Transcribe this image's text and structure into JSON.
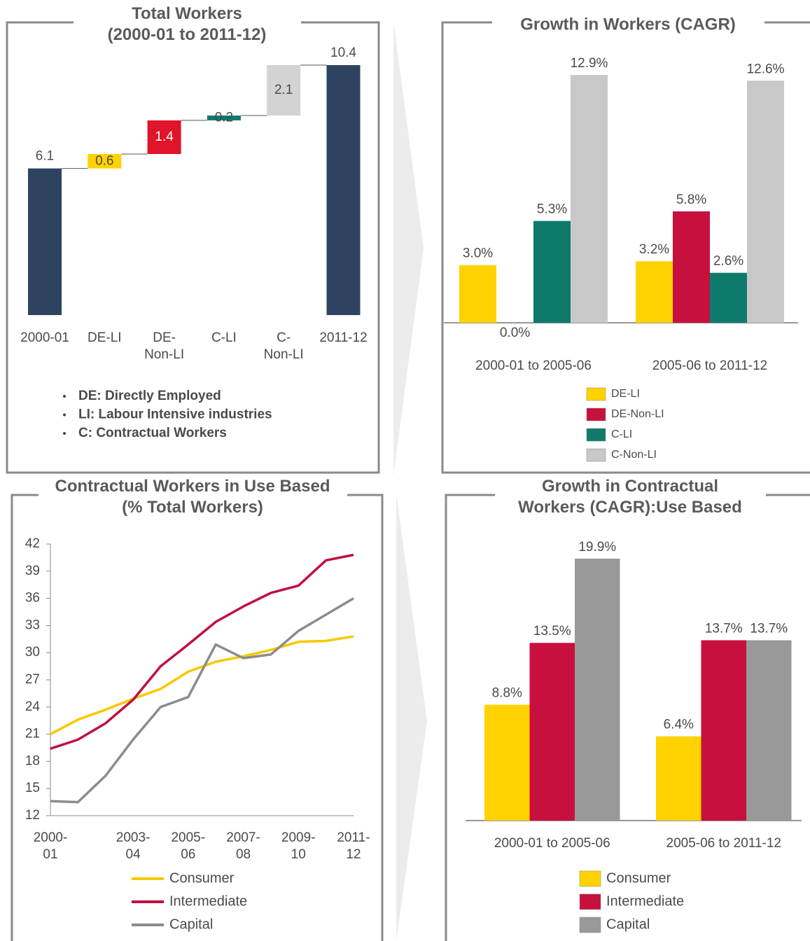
{
  "chart_data": [
    {
      "type": "waterfall",
      "title": "Total Workers\n(2000-01 to 2011-12)",
      "categories": [
        "2000-01",
        "DE-LI",
        "DE-\nNon-LI",
        "C-LI",
        "C-\nNon-LI",
        "2011-12"
      ],
      "values": [
        6.1,
        0.6,
        1.4,
        0.2,
        2.1,
        10.4
      ],
      "measure": [
        "total",
        "relative",
        "relative",
        "relative",
        "relative",
        "total"
      ],
      "colors": [
        "#2e4360",
        "#ffd200",
        "#e0142a",
        "#0e7a6b",
        "#d3d3d3",
        "#2e4360"
      ],
      "notes": [
        "DE: Directly Employed",
        "LI: Labour Intensive industries",
        "C: Contractual Workers"
      ]
    },
    {
      "type": "bar",
      "title": "Growth in Workers (CAGR)",
      "categories": [
        "2000-01 to 2005-06",
        "2005-06 to 2011-12"
      ],
      "series": [
        {
          "name": "DE-LI",
          "color": "#ffd200",
          "values": [
            3.0,
            3.2
          ],
          "value_labels": [
            "3.0%",
            "3.2%"
          ]
        },
        {
          "name": "DE-Non-LI",
          "color": "#c8103e",
          "values": [
            0.0,
            5.8
          ],
          "value_labels": [
            "0.0%",
            "5.8%"
          ]
        },
        {
          "name": "C-LI",
          "color": "#0e7a6b",
          "values": [
            5.3,
            2.6
          ],
          "value_labels": [
            "5.3%",
            "2.6%"
          ]
        },
        {
          "name": "C-Non-LI",
          "color": "#c8c8c8",
          "values": [
            12.9,
            12.6
          ],
          "value_labels": [
            "12.9%",
            "12.6%"
          ]
        }
      ]
    },
    {
      "type": "line",
      "title": "Contractual Workers in Use Based\n(% Total Workers)",
      "categories": [
        "2000-\n01",
        null,
        null,
        "2003-\n04",
        null,
        "2005-\n06",
        null,
        "2007-\n08",
        null,
        "2009-\n10",
        null,
        "2011-\n12"
      ],
      "ylim": [
        12,
        42
      ],
      "yticks": [
        12,
        15,
        18,
        21,
        24,
        27,
        30,
        33,
        36,
        39,
        42
      ],
      "grid": false,
      "series": [
        {
          "name": "Consumer",
          "color": "#f7c900",
          "values": [
            21.0,
            22.6,
            23.7,
            24.9,
            26.0,
            27.9,
            29.0,
            29.6,
            30.3,
            31.2,
            31.3,
            31.8
          ]
        },
        {
          "name": "Intermediate",
          "color": "#c0103f",
          "values": [
            19.4,
            20.4,
            22.2,
            24.8,
            28.5,
            30.9,
            33.4,
            35.1,
            36.6,
            37.4,
            40.2,
            40.8
          ]
        },
        {
          "name": "Capital",
          "color": "#8c8c8c",
          "values": [
            13.6,
            13.5,
            16.4,
            20.4,
            24.0,
            25.1,
            30.9,
            29.4,
            29.8,
            32.4,
            34.2,
            36.0
          ]
        }
      ]
    },
    {
      "type": "bar",
      "title": "Growth in Contractual\nWorkers (CAGR):Use Based",
      "categories": [
        "2000-01 to 2005-06",
        "2005-06 to 2011-12"
      ],
      "series": [
        {
          "name": "Consumer",
          "color": "#ffd200",
          "values": [
            8.8,
            6.4
          ],
          "value_labels": [
            "8.8%",
            "6.4%"
          ]
        },
        {
          "name": "Intermediate",
          "color": "#c8103e",
          "values": [
            13.5,
            13.7
          ],
          "value_labels": [
            "13.5%",
            "13.7%"
          ]
        },
        {
          "name": "Capital",
          "color": "#999999",
          "values": [
            19.9,
            13.7
          ],
          "value_labels": [
            "19.9%",
            "13.7%"
          ]
        }
      ]
    }
  ]
}
